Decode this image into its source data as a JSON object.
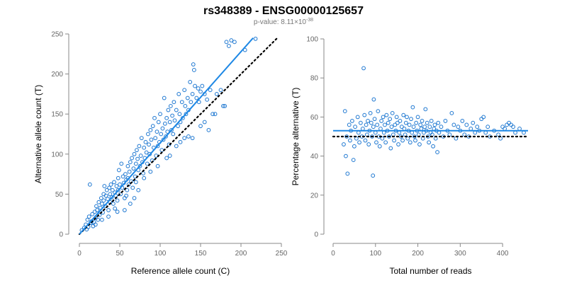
{
  "header": {
    "title": "rs348389 - ENSG00000125657",
    "subtitle_prefix": "p-value: 8.11×10",
    "subtitle_exponent": "-38"
  },
  "colors": {
    "points": "#1f78d1",
    "fit_line": "#1e88e5",
    "reference_line": "#000000",
    "axis": "#888888"
  },
  "chart_data": [
    {
      "type": "scatter",
      "xlabel": "Reference allele count (C)",
      "ylabel": "Alternative allele count (T)",
      "xlim": [
        0,
        250
      ],
      "ylim": [
        0,
        250
      ],
      "xticks": [
        0,
        50,
        100,
        150,
        200,
        250
      ],
      "yticks": [
        0,
        50,
        100,
        150,
        200,
        250
      ],
      "grid": false,
      "fit_line": {
        "x": [
          0,
          215
        ],
        "y": [
          0,
          245
        ]
      },
      "reference_line": {
        "x": [
          0,
          245
        ],
        "y": [
          0,
          245
        ]
      },
      "points": [
        [
          3,
          5
        ],
        [
          6,
          8
        ],
        [
          8,
          12
        ],
        [
          10,
          18
        ],
        [
          12,
          22
        ],
        [
          13,
          62
        ],
        [
          14,
          14
        ],
        [
          16,
          25
        ],
        [
          18,
          15
        ],
        [
          19,
          28
        ],
        [
          20,
          20
        ],
        [
          21,
          35
        ],
        [
          22,
          30
        ],
        [
          23,
          18
        ],
        [
          24,
          40
        ],
        [
          25,
          24
        ],
        [
          26,
          33
        ],
        [
          27,
          45
        ],
        [
          28,
          38
        ],
        [
          29,
          27
        ],
        [
          30,
          50
        ],
        [
          30,
          42
        ],
        [
          31,
          60
        ],
        [
          32,
          35
        ],
        [
          33,
          48
        ],
        [
          34,
          55
        ],
        [
          35,
          44
        ],
        [
          36,
          30
        ],
        [
          37,
          58
        ],
        [
          38,
          40
        ],
        [
          38,
          50
        ],
        [
          39,
          62
        ],
        [
          40,
          46
        ],
        [
          41,
          55
        ],
        [
          42,
          38
        ],
        [
          43,
          65
        ],
        [
          44,
          52
        ],
        [
          45,
          48
        ],
        [
          46,
          60
        ],
        [
          47,
          42
        ],
        [
          48,
          70
        ],
        [
          48,
          55
        ],
        [
          49,
          80
        ],
        [
          50,
          62
        ],
        [
          51,
          50
        ],
        [
          52,
          88
        ],
        [
          53,
          58
        ],
        [
          54,
          72
        ],
        [
          55,
          64
        ],
        [
          56,
          45
        ],
        [
          57,
          75
        ],
        [
          58,
          68
        ],
        [
          59,
          55
        ],
        [
          60,
          85
        ],
        [
          60,
          70
        ],
        [
          61,
          62
        ],
        [
          62,
          78
        ],
        [
          63,
          90
        ],
        [
          64,
          66
        ],
        [
          65,
          95
        ],
        [
          66,
          58
        ],
        [
          67,
          82
        ],
        [
          68,
          100
        ],
        [
          69,
          72
        ],
        [
          70,
          88
        ],
        [
          70,
          65
        ],
        [
          71,
          105
        ],
        [
          72,
          94
        ],
        [
          73,
          80
        ],
        [
          74,
          110
        ],
        [
          75,
          85
        ],
        [
          76,
          98
        ],
        [
          77,
          120
        ],
        [
          78,
          90
        ],
        [
          79,
          76
        ],
        [
          80,
          108
        ],
        [
          81,
          95
        ],
        [
          82,
          115
        ],
        [
          83,
          102
        ],
        [
          84,
          88
        ],
        [
          85,
          125
        ],
        [
          86,
          112
        ],
        [
          87,
          100
        ],
        [
          88,
          130
        ],
        [
          89,
          118
        ],
        [
          90,
          92
        ],
        [
          91,
          135
        ],
        [
          92,
          108
        ],
        [
          93,
          145
        ],
        [
          94,
          120
        ],
        [
          95,
          98
        ],
        [
          96,
          128
        ],
        [
          97,
          110
        ],
        [
          98,
          140
        ],
        [
          99,
          115
        ],
        [
          100,
          150
        ],
        [
          101,
          125
        ],
        [
          102,
          105
        ],
        [
          103,
          132
        ],
        [
          104,
          118
        ],
        [
          105,
          170
        ],
        [
          106,
          138
        ],
        [
          107,
          122
        ],
        [
          108,
          145
        ],
        [
          109,
          128
        ],
        [
          110,
          155
        ],
        [
          111,
          112
        ],
        [
          112,
          140
        ],
        [
          113,
          160
        ],
        [
          114,
          130
        ],
        [
          115,
          148
        ],
        [
          116,
          125
        ],
        [
          117,
          165
        ],
        [
          118,
          142
        ],
        [
          120,
          155
        ],
        [
          122,
          135
        ],
        [
          123,
          175
        ],
        [
          124,
          150
        ],
        [
          125,
          140
        ],
        [
          127,
          165
        ],
        [
          128,
          145
        ],
        [
          130,
          180
        ],
        [
          131,
          160
        ],
        [
          132,
          150
        ],
        [
          134,
          170
        ],
        [
          135,
          155
        ],
        [
          137,
          190
        ],
        [
          138,
          165
        ],
        [
          140,
          175
        ],
        [
          141,
          212
        ],
        [
          142,
          205
        ],
        [
          143,
          185
        ],
        [
          145,
          170
        ],
        [
          147,
          182
        ],
        [
          150,
          178
        ],
        [
          152,
          185
        ],
        [
          155,
          175
        ],
        [
          158,
          168
        ],
        [
          162,
          180
        ],
        [
          165,
          150
        ],
        [
          170,
          175
        ],
        [
          175,
          180
        ],
        [
          178,
          160
        ],
        [
          182,
          240
        ],
        [
          185,
          235
        ],
        [
          188,
          242
        ],
        [
          192,
          240
        ],
        [
          205,
          230
        ],
        [
          218,
          244
        ],
        [
          47,
          28
        ],
        [
          56,
          30
        ],
        [
          63,
          38
        ],
        [
          73,
          55
        ],
        [
          80,
          70
        ],
        [
          88,
          78
        ],
        [
          97,
          85
        ],
        [
          108,
          95
        ],
        [
          120,
          110
        ],
        [
          130,
          120
        ],
        [
          140,
          120
        ],
        [
          148,
          165
        ],
        [
          150,
          135
        ],
        [
          155,
          140
        ],
        [
          160,
          130
        ],
        [
          168,
          150
        ],
        [
          180,
          160
        ],
        [
          135,
          122
        ],
        [
          125,
          115
        ],
        [
          112,
          98
        ],
        [
          68,
          45
        ],
        [
          58,
          48
        ],
        [
          44,
          32
        ],
        [
          36,
          22
        ],
        [
          28,
          18
        ],
        [
          20,
          12
        ],
        [
          17,
          10
        ],
        [
          15,
          16
        ],
        [
          11,
          9
        ],
        [
          9,
          6
        ]
      ]
    },
    {
      "type": "scatter",
      "xlabel": "Total number of reads",
      "ylabel": "Percentage alternative (T)",
      "xlim": [
        0,
        460
      ],
      "ylim": [
        0,
        100
      ],
      "xticks": [
        0,
        100,
        200,
        300,
        400
      ],
      "yticks": [
        0,
        20,
        40,
        60,
        80,
        100
      ],
      "grid": false,
      "fit_line": {
        "x": [
          0,
          460
        ],
        "y": [
          53,
          53
        ]
      },
      "reference_line": {
        "x": [
          0,
          460
        ],
        "y": [
          50,
          50
        ]
      },
      "points": [
        [
          25,
          46
        ],
        [
          28,
          63
        ],
        [
          30,
          40
        ],
        [
          32,
          50
        ],
        [
          34,
          31
        ],
        [
          38,
          56
        ],
        [
          40,
          48
        ],
        [
          42,
          53
        ],
        [
          45,
          58
        ],
        [
          48,
          38
        ],
        [
          50,
          45
        ],
        [
          52,
          55
        ],
        [
          55,
          49
        ],
        [
          58,
          60
        ],
        [
          60,
          52
        ],
        [
          62,
          47
        ],
        [
          65,
          57
        ],
        [
          68,
          50
        ],
        [
          70,
          54
        ],
        [
          72,
          85
        ],
        [
          74,
          61
        ],
        [
          76,
          48
        ],
        [
          78,
          56
        ],
        [
          80,
          51
        ],
        [
          82,
          58
        ],
        [
          84,
          46
        ],
        [
          86,
          53
        ],
        [
          88,
          62
        ],
        [
          90,
          57
        ],
        [
          92,
          50
        ],
        [
          94,
          30
        ],
        [
          95,
          55
        ],
        [
          96,
          69
        ],
        [
          98,
          59
        ],
        [
          100,
          52
        ],
        [
          102,
          47
        ],
        [
          104,
          56
        ],
        [
          106,
          63
        ],
        [
          108,
          50
        ],
        [
          110,
          45
        ],
        [
          112,
          54
        ],
        [
          114,
          58
        ],
        [
          116,
          49
        ],
        [
          118,
          60
        ],
        [
          120,
          52
        ],
        [
          122,
          56
        ],
        [
          124,
          47
        ],
        [
          126,
          61
        ],
        [
          128,
          53
        ],
        [
          130,
          57
        ],
        [
          132,
          50
        ],
        [
          134,
          59
        ],
        [
          136,
          44
        ],
        [
          138,
          55
        ],
        [
          140,
          62
        ],
        [
          142,
          51
        ],
        [
          144,
          48
        ],
        [
          146,
          56
        ],
        [
          148,
          53
        ],
        [
          150,
          60
        ],
        [
          152,
          57
        ],
        [
          154,
          46
        ],
        [
          156,
          52
        ],
        [
          158,
          58
        ],
        [
          160,
          50
        ],
        [
          162,
          55
        ],
        [
          164,
          48
        ],
        [
          166,
          61
        ],
        [
          168,
          54
        ],
        [
          170,
          51
        ],
        [
          172,
          57
        ],
        [
          174,
          60
        ],
        [
          176,
          49
        ],
        [
          178,
          53
        ],
        [
          180,
          56
        ],
        [
          182,
          47
        ],
        [
          184,
          59
        ],
        [
          186,
          52
        ],
        [
          188,
          65
        ],
        [
          190,
          55
        ],
        [
          192,
          50
        ],
        [
          194,
          48
        ],
        [
          196,
          57
        ],
        [
          198,
          53
        ],
        [
          200,
          60
        ],
        [
          202,
          51
        ],
        [
          204,
          46
        ],
        [
          206,
          56
        ],
        [
          208,
          54
        ],
        [
          210,
          58
        ],
        [
          212,
          49
        ],
        [
          214,
          52
        ],
        [
          216,
          55
        ],
        [
          218,
          64
        ],
        [
          220,
          53
        ],
        [
          222,
          57
        ],
        [
          224,
          50
        ],
        [
          226,
          47
        ],
        [
          228,
          55
        ],
        [
          230,
          52
        ],
        [
          232,
          58
        ],
        [
          234,
          51
        ],
        [
          236,
          45
        ],
        [
          238,
          54
        ],
        [
          240,
          56
        ],
        [
          242,
          49
        ],
        [
          244,
          53
        ],
        [
          246,
          42
        ],
        [
          248,
          57
        ],
        [
          250,
          52
        ],
        [
          255,
          55
        ],
        [
          260,
          50
        ],
        [
          265,
          58
        ],
        [
          270,
          53
        ],
        [
          275,
          51
        ],
        [
          280,
          62
        ],
        [
          285,
          56
        ],
        [
          290,
          49
        ],
        [
          295,
          55
        ],
        [
          300,
          53
        ],
        [
          305,
          58
        ],
        [
          310,
          51
        ],
        [
          315,
          56
        ],
        [
          320,
          50
        ],
        [
          325,
          54
        ],
        [
          330,
          57
        ],
        [
          335,
          52
        ],
        [
          340,
          55
        ],
        [
          345,
          53
        ],
        [
          350,
          59
        ],
        [
          355,
          60
        ],
        [
          360,
          52
        ],
        [
          365,
          55
        ],
        [
          370,
          50
        ],
        [
          380,
          53
        ],
        [
          390,
          51
        ],
        [
          395,
          49
        ],
        [
          400,
          55
        ],
        [
          405,
          54
        ],
        [
          410,
          56
        ],
        [
          415,
          57
        ],
        [
          420,
          56
        ],
        [
          425,
          55
        ],
        [
          430,
          52
        ],
        [
          440,
          54
        ],
        [
          450,
          52
        ]
      ]
    }
  ]
}
